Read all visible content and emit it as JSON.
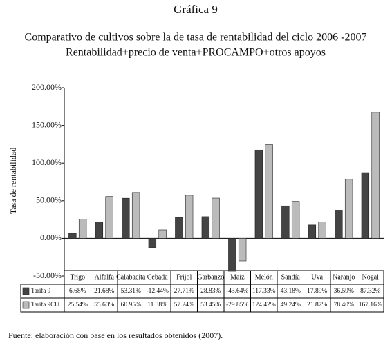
{
  "chart_data": {
    "type": "bar",
    "title": "Gráfica 9",
    "subtitle": [
      "Comparativo de cultivos sobre la de tasa de rentabilidad del ciclo 2006 -2007",
      "Rentabilidad+precio de venta+PROCAMPO+otros apoyos"
    ],
    "y_label": "Tasa de rentabilidad",
    "source": "Fuente: elaboración con base en los resultados obtenidos (2007).",
    "categories": [
      "Trigo",
      "Alfalfa",
      "Calabacita",
      "Cebada",
      "Frijol",
      "Garbanzo",
      "Maíz",
      "Melón",
      "Sandía",
      "Uva",
      "Naranjo",
      "Nogal"
    ],
    "series": [
      {
        "name": "Tarifa 9",
        "color": "#444444",
        "values": [
          6.68,
          21.68,
          53.31,
          -12.44,
          27.71,
          28.83,
          -43.64,
          117.33,
          43.18,
          17.89,
          36.59,
          87.32
        ],
        "value_labels": [
          "6.68%",
          "21.68%",
          "53.31%",
          "-12.44%",
          "27.71%",
          "28.83%",
          "-43.64%",
          "117.33%",
          "43.18%",
          "17.89%",
          "36.59%",
          "87.32%"
        ]
      },
      {
        "name": "Tarifa 9CU",
        "color": "#bbbbbb",
        "values": [
          25.54,
          55.6,
          60.95,
          11.38,
          57.24,
          53.45,
          -29.85,
          124.42,
          49.24,
          21.87,
          78.4,
          167.16
        ],
        "value_labels": [
          "25.54%",
          "55.60%",
          "60.95%",
          "11.38%",
          "57.24%",
          "53.45%",
          "-29.85%",
          "124.42%",
          "49.24%",
          "21.87%",
          "78.40%",
          "167.16%"
        ]
      }
    ],
    "ylim": [
      -50,
      200
    ],
    "yticks": [
      {
        "value": -50,
        "label": "-50.00%"
      },
      {
        "value": 0,
        "label": "0.00%"
      },
      {
        "value": 50,
        "label": "50.00%"
      },
      {
        "value": 100,
        "label": "100.00%"
      },
      {
        "value": 150,
        "label": "150.00%"
      },
      {
        "value": 200,
        "label": "200.00%"
      }
    ],
    "grid": false
  }
}
